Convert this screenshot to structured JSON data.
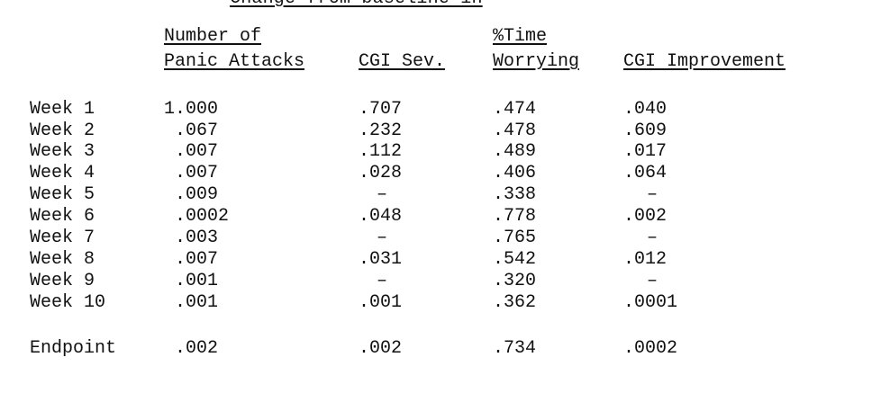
{
  "table": {
    "banner": "Change from baseline in",
    "headers": {
      "panic_line1": "Number of",
      "panic_line2": "Panic Attacks",
      "cgi_sev": "CGI Sev.",
      "worry_line1": "%Time",
      "worry_line2": "Worrying",
      "cgi_improvement": "CGI Improvement"
    },
    "rows": [
      {
        "label": "Week 1",
        "panic": "1.000",
        "cgi_sev": ".707",
        "worry": ".474",
        "cgi_imp": ".040"
      },
      {
        "label": "Week 2",
        "panic": ".067",
        "cgi_sev": ".232",
        "worry": ".478",
        "cgi_imp": ".609"
      },
      {
        "label": "Week 3",
        "panic": ".007",
        "cgi_sev": ".112",
        "worry": ".489",
        "cgi_imp": ".017"
      },
      {
        "label": "Week 4",
        "panic": ".007",
        "cgi_sev": ".028",
        "worry": ".406",
        "cgi_imp": ".064"
      },
      {
        "label": "Week 5",
        "panic": ".009",
        "cgi_sev": "–",
        "worry": ".338",
        "cgi_imp": "–"
      },
      {
        "label": "Week 6",
        "panic": ".0002",
        "cgi_sev": ".048",
        "worry": ".778",
        "cgi_imp": ".002"
      },
      {
        "label": "Week 7",
        "panic": ".003",
        "cgi_sev": "–",
        "worry": ".765",
        "cgi_imp": "–"
      },
      {
        "label": "Week 8",
        "panic": ".007",
        "cgi_sev": ".031",
        "worry": ".542",
        "cgi_imp": ".012"
      },
      {
        "label": "Week 9",
        "panic": ".001",
        "cgi_sev": "–",
        "worry": ".320",
        "cgi_imp": "–"
      },
      {
        "label": "Week 10",
        "panic": ".001",
        "cgi_sev": ".001",
        "worry": ".362",
        "cgi_imp": ".0001"
      }
    ],
    "endpoint": {
      "label": "Endpoint",
      "panic": ".002",
      "cgi_sev": ".002",
      "worry": ".734",
      "cgi_imp": ".0002"
    }
  }
}
